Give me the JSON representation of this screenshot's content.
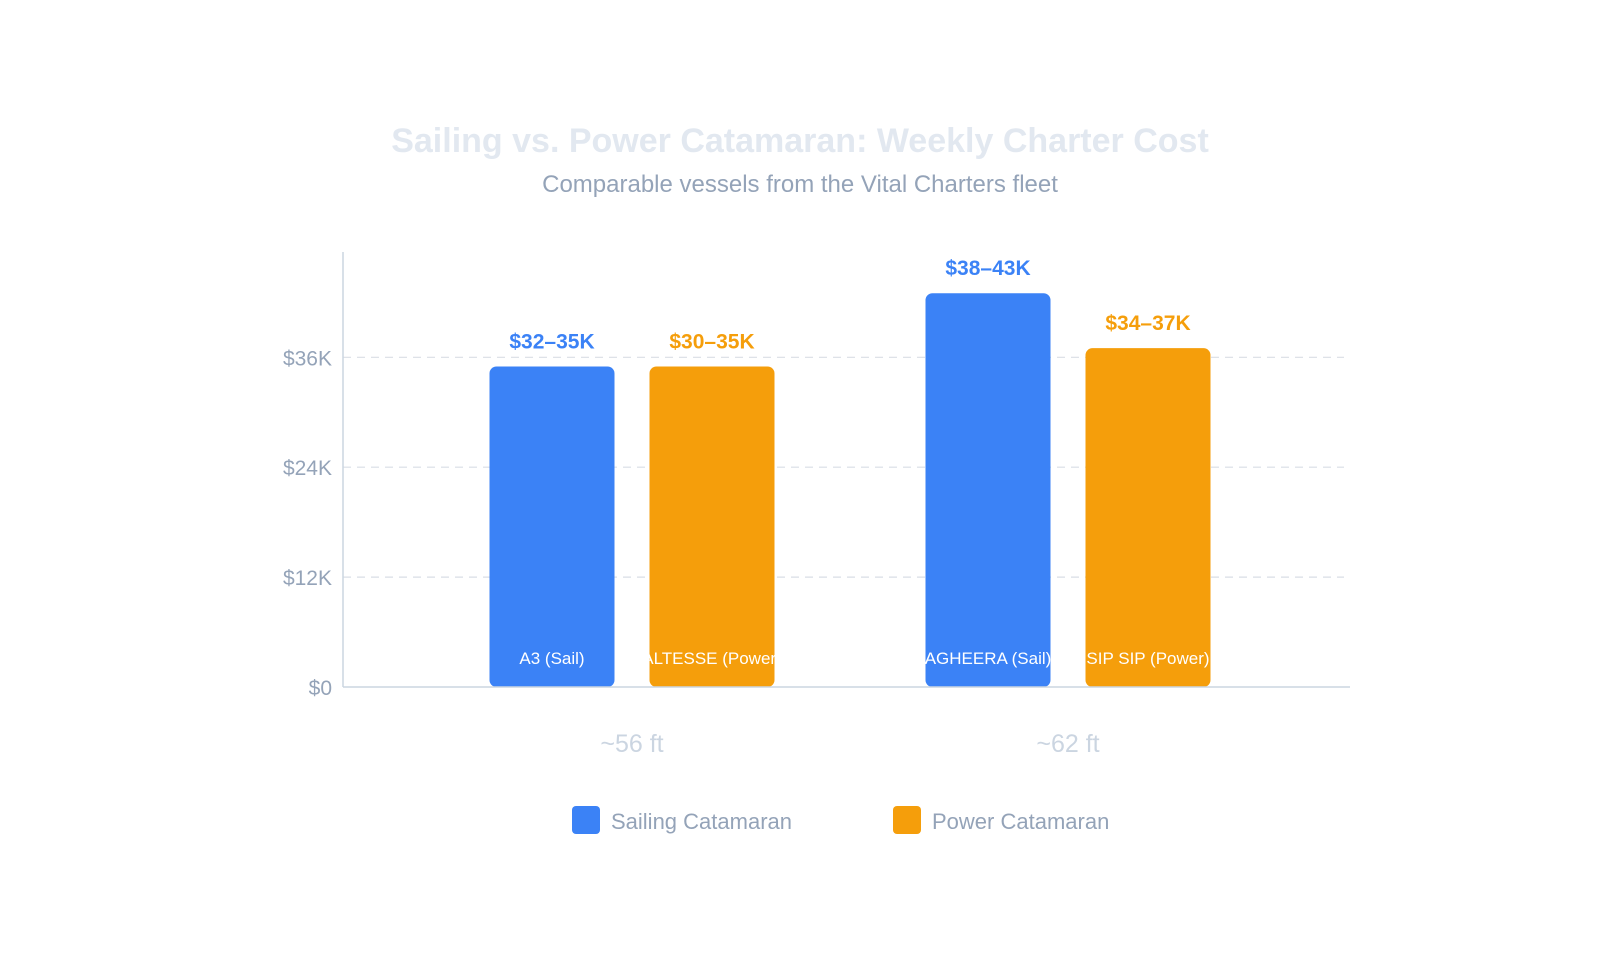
{
  "chart_data": {
    "type": "bar",
    "title": "Sailing vs. Power Catamaran: Weekly Charter Cost",
    "subtitle": "Comparable vessels from the Vital Charters fleet",
    "ylim": [
      0,
      47500
    ],
    "yticks": [
      0,
      12000,
      24000,
      36000
    ],
    "ytick_labels": [
      "$0",
      "$12K",
      "$24K",
      "$36K"
    ],
    "grid": true,
    "legend_position": "bottom",
    "categories": [
      "~56 ft",
      "~62 ft"
    ],
    "series": [
      {
        "name": "Sailing Catamaran",
        "color": "#3b82f6",
        "bar_names": [
          "A3 (Sail)",
          "AGHEERA (Sail)"
        ],
        "values": [
          35000,
          43000
        ],
        "value_labels": [
          "$32–35K",
          "$38–43K"
        ]
      },
      {
        "name": "Power Catamaran",
        "color": "#f59e0b",
        "bar_names": [
          "ALTESSE (Power)",
          "SIP SIP (Power)"
        ],
        "values": [
          35000,
          37000
        ],
        "value_labels": [
          "$30–35K",
          "$34–37K"
        ]
      }
    ]
  },
  "colors": {
    "title": "#e2e8f0",
    "subtitle": "#94a3b8",
    "axis": "#cbd5e1",
    "grid": "#d9dee5",
    "tick": "#94a3b8",
    "group_label": "#cbd5e1",
    "bar_name": "#ffffff",
    "legend_text": "#94a3b8"
  }
}
